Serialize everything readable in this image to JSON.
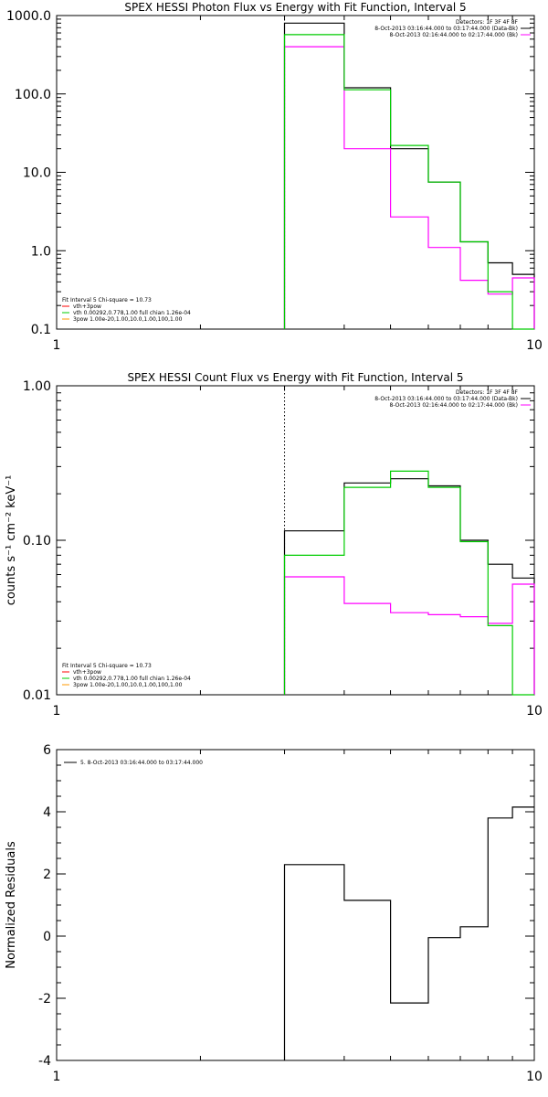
{
  "colors": {
    "black": "#000000",
    "magenta": "#ff00ff",
    "green": "#00cc00",
    "orange": "#ff9900",
    "red": "#ff0000"
  },
  "chart_data": [
    {
      "type": "line",
      "title": "SPEX HESSI Photon Flux vs Energy with Fit Function, Interval 5",
      "xscale": "log",
      "yscale": "log",
      "xlim": [
        1,
        10
      ],
      "ylim": [
        0.1,
        1000
      ],
      "xticks": [
        {
          "v": 1,
          "label": "1"
        },
        {
          "v": 10,
          "label": "10"
        }
      ],
      "yticks": [
        {
          "v": 1000,
          "label": "1000.0"
        },
        {
          "v": 100,
          "label": "100.0"
        },
        {
          "v": 10,
          "label": "10.0"
        },
        {
          "v": 1,
          "label": "1.0"
        },
        {
          "v": 0.1,
          "label": "0.1"
        }
      ],
      "vline": 3,
      "legend_top": [
        "Detectors: 1F 3F 4F 8F",
        "8-Oct-2013 03:16:44.000 to 03:17:44.000 (Data-Bk)",
        "8-Oct-2013 02:16:44.000 to 02:17:44.000 (Bk)"
      ],
      "legend_top_colors": [
        "none",
        "#000000",
        "#ff00ff"
      ],
      "legend_bottom": [
        "Fit Interval 5   Chi-square = 10.73",
        "vth+3pow",
        "vth 0.00292,0.778,1.00   full chian 1.26e-04",
        "3pow 1.00e-20,1.00,10.0,1.00,100,1.00"
      ],
      "legend_bottom_colors": [
        "none",
        "#ff0000",
        "#00cc00",
        "#ff9900"
      ],
      "edges": [
        3,
        4,
        5,
        6,
        7,
        8,
        9,
        10
      ],
      "series": [
        {
          "key": "data",
          "color": "#000000",
          "values": [
            800,
            120,
            20,
            7.5,
            1.3,
            0.7,
            0.5
          ]
        },
        {
          "key": "background",
          "color": "#ff00ff",
          "values": [
            400,
            20,
            2.7,
            1.1,
            0.42,
            0.28,
            0.45
          ]
        },
        {
          "key": "fit",
          "color": "#00cc00",
          "values": [
            570,
            113,
            22,
            7.5,
            1.3,
            0.3,
            0.1
          ]
        }
      ]
    },
    {
      "type": "line",
      "title": "SPEX HESSI Count Flux vs Energy with Fit Function, Interval 5",
      "ylabel": "counts s⁻¹ cm⁻² keV⁻¹",
      "xscale": "log",
      "yscale": "log",
      "xlim": [
        1,
        10
      ],
      "ylim": [
        0.01,
        1
      ],
      "xticks": [
        {
          "v": 1,
          "label": "1"
        },
        {
          "v": 10,
          "label": "10"
        }
      ],
      "yticks": [
        {
          "v": 1,
          "label": "1.00"
        },
        {
          "v": 0.1,
          "label": "0.10"
        },
        {
          "v": 0.01,
          "label": "0.01"
        }
      ],
      "vline": 3,
      "legend_top": [
        "Detectors: 1F 3F 4F 8F",
        "8-Oct-2013 03:16:44.000 to 03:17:44.000 (Data-Bk)",
        "8-Oct-2013 02:16:44.000 to 02:17:44.000 (Bk)"
      ],
      "legend_top_colors": [
        "none",
        "#000000",
        "#ff00ff"
      ],
      "legend_bottom": [
        "Fit Interval 5   Chi-square = 10.73",
        "vth+3pow",
        "vth 0.00292,0.778,1.00   full chian 1.26e-04",
        "3pow 1.00e-20,1.00,10.0,1.00,100,1.00"
      ],
      "legend_bottom_colors": [
        "none",
        "#ff0000",
        "#00cc00",
        "#ff9900"
      ],
      "edges": [
        3,
        4,
        5,
        6,
        7,
        8,
        9,
        10
      ],
      "series": [
        {
          "key": "data",
          "color": "#000000",
          "values": [
            0.115,
            0.235,
            0.25,
            0.225,
            0.1,
            0.07,
            0.057
          ]
        },
        {
          "key": "background",
          "color": "#ff00ff",
          "values": [
            0.058,
            0.039,
            0.034,
            0.033,
            0.032,
            0.029,
            0.052
          ]
        },
        {
          "key": "fit",
          "color": "#00cc00",
          "values": [
            0.08,
            0.22,
            0.28,
            0.22,
            0.098,
            0.028,
            0.01
          ]
        }
      ]
    },
    {
      "type": "line",
      "ylabel": "Normalized Residuals",
      "xscale": "log",
      "yscale": "linear",
      "xlim": [
        1,
        10
      ],
      "ylim": [
        -4,
        6
      ],
      "xticks": [
        {
          "v": 1,
          "label": "1"
        },
        {
          "v": 10,
          "label": "10"
        }
      ],
      "yticks": [
        {
          "v": 6,
          "label": "6"
        },
        {
          "v": 4,
          "label": "4"
        },
        {
          "v": 2,
          "label": "2"
        },
        {
          "v": 0,
          "label": "0"
        },
        {
          "v": -2,
          "label": "-2"
        },
        {
          "v": -4,
          "label": "-4"
        }
      ],
      "legend_top": [
        "5.  8-Oct-2013 03:16:44.000 to 03:17:44.000"
      ],
      "legend_top_colors": [
        "#000000"
      ],
      "edges": [
        3,
        4,
        5,
        6,
        7,
        8,
        9,
        10
      ],
      "series": [
        {
          "key": "residuals",
          "color": "#000000",
          "values": [
            2.3,
            1.15,
            -2.15,
            -0.05,
            0.3,
            3.8,
            4.15
          ]
        }
      ]
    }
  ]
}
